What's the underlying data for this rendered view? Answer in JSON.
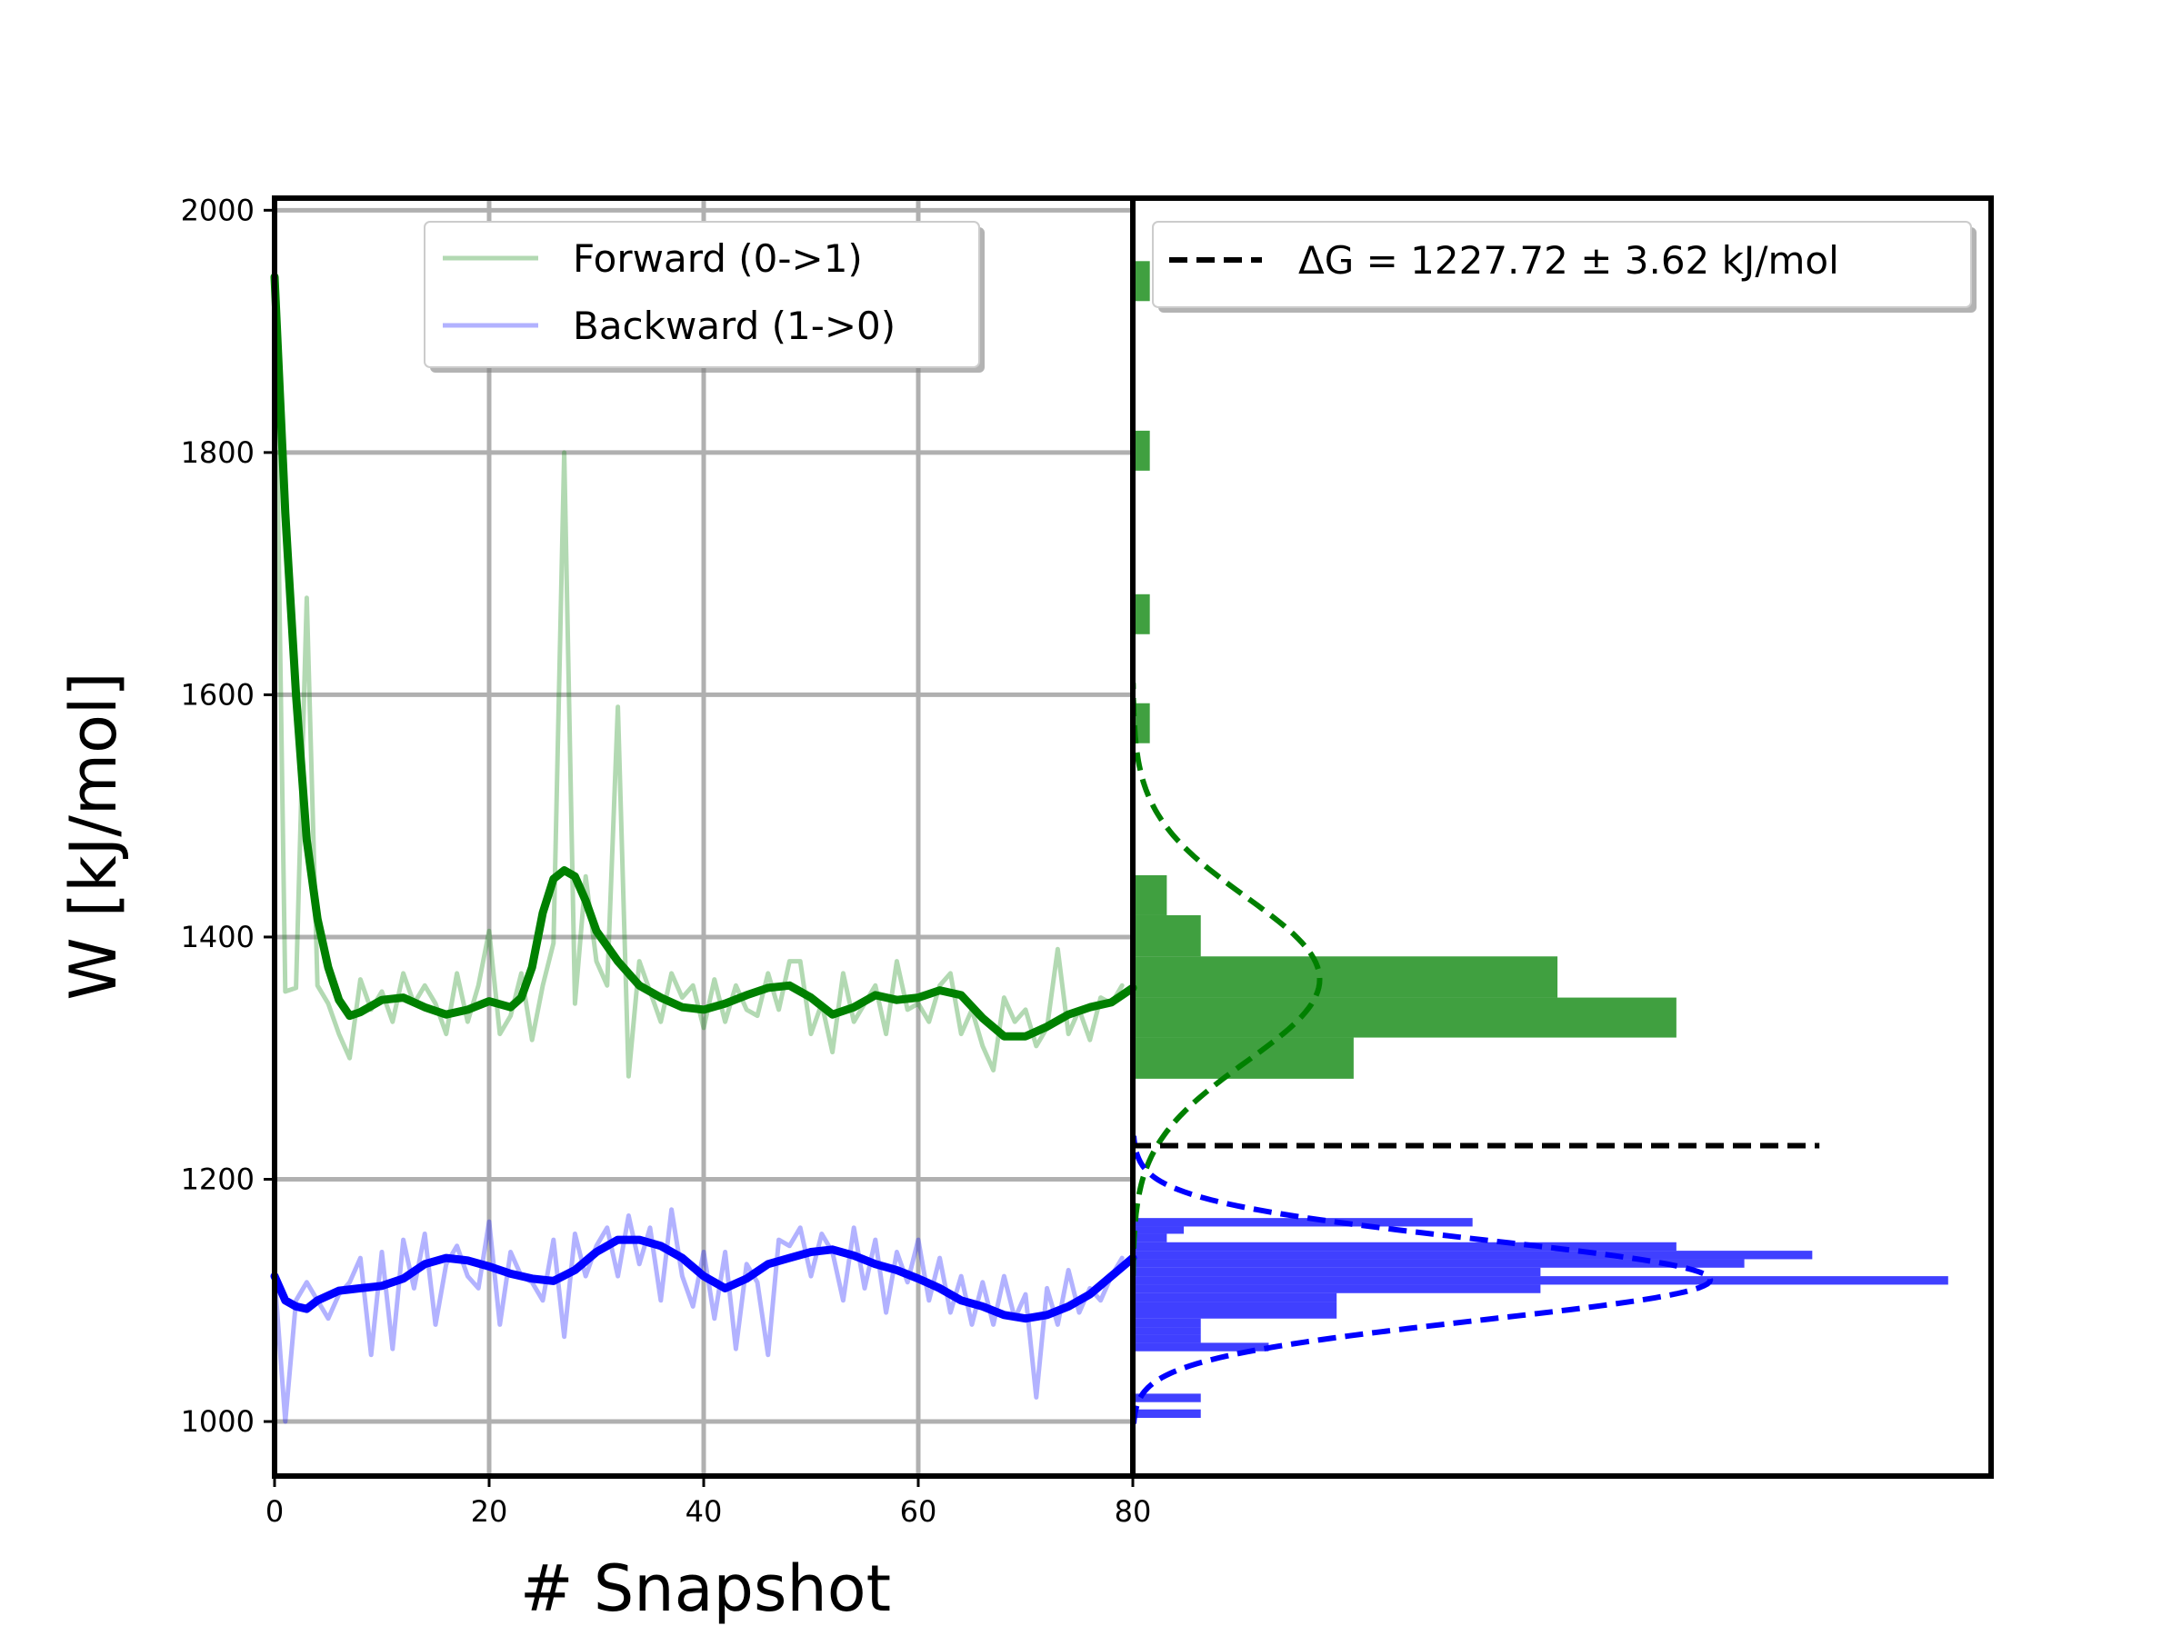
{
  "chart_data": {
    "type": "line",
    "xlabel": "# Snapshot",
    "ylabel": "W [kJ/mol]",
    "xlim": [
      0,
      80
    ],
    "ylim": [
      955,
      2010
    ],
    "x_ticks": [
      0,
      20,
      40,
      60,
      80
    ],
    "y_ticks": [
      1000,
      1200,
      1400,
      1600,
      1800,
      2000
    ],
    "grid": true,
    "legend_placement": "top-center",
    "series": [
      {
        "name": "Forward (0->1)",
        "color": "#008000",
        "alpha": 0.3,
        "x": [
          0,
          1,
          2,
          3,
          4,
          5,
          6,
          7,
          8,
          9,
          10,
          11,
          12,
          13,
          14,
          15,
          16,
          17,
          18,
          19,
          20,
          21,
          22,
          23,
          24,
          25,
          26,
          27,
          28,
          29,
          30,
          31,
          32,
          33,
          34,
          35,
          36,
          37,
          38,
          39,
          40,
          41,
          42,
          43,
          44,
          45,
          46,
          47,
          48,
          49,
          50,
          51,
          52,
          53,
          54,
          55,
          56,
          57,
          58,
          59,
          60,
          61,
          62,
          63,
          64,
          65,
          66,
          67,
          68,
          69,
          70,
          71,
          72,
          73,
          74,
          75,
          76,
          77,
          78,
          79
        ],
        "y": [
          1945,
          1355,
          1358,
          1680,
          1360,
          1345,
          1320,
          1300,
          1365,
          1340,
          1355,
          1330,
          1370,
          1345,
          1360,
          1345,
          1320,
          1370,
          1330,
          1360,
          1405,
          1320,
          1335,
          1370,
          1315,
          1360,
          1395,
          1800,
          1345,
          1450,
          1380,
          1360,
          1590,
          1285,
          1380,
          1355,
          1330,
          1370,
          1350,
          1360,
          1325,
          1365,
          1330,
          1360,
          1340,
          1335,
          1370,
          1340,
          1380,
          1380,
          1320,
          1345,
          1305,
          1370,
          1330,
          1345,
          1360,
          1320,
          1380,
          1340,
          1345,
          1330,
          1360,
          1370,
          1320,
          1340,
          1310,
          1290,
          1350,
          1330,
          1340,
          1310,
          1325,
          1390,
          1320,
          1340,
          1315,
          1350,
          1345,
          1360
        ]
      },
      {
        "name": "",
        "color": "#008000",
        "alpha": 1,
        "x": [
          0,
          1,
          2,
          3,
          4,
          5,
          6,
          7,
          8,
          10,
          12,
          14,
          16,
          18,
          20,
          22,
          23,
          24,
          25,
          26,
          27,
          28,
          29,
          30,
          32,
          34,
          36,
          38,
          40,
          42,
          44,
          46,
          48,
          50,
          52,
          54,
          56,
          58,
          60,
          62,
          64,
          66,
          68,
          70,
          72,
          74,
          76,
          78,
          80
        ],
        "y": [
          1945,
          1750,
          1600,
          1480,
          1415,
          1375,
          1348,
          1335,
          1338,
          1348,
          1350,
          1342,
          1336,
          1340,
          1347,
          1342,
          1350,
          1375,
          1420,
          1448,
          1455,
          1450,
          1430,
          1405,
          1380,
          1360,
          1350,
          1342,
          1340,
          1345,
          1352,
          1358,
          1360,
          1350,
          1336,
          1342,
          1352,
          1348,
          1350,
          1356,
          1352,
          1333,
          1318,
          1318,
          1326,
          1336,
          1342,
          1346,
          1358
        ]
      },
      {
        "name": "Backward (1->0)",
        "color": "#0000ff",
        "alpha": 0.3,
        "x": [
          0,
          1,
          2,
          3,
          4,
          5,
          6,
          7,
          8,
          9,
          10,
          11,
          12,
          13,
          14,
          15,
          16,
          17,
          18,
          19,
          20,
          21,
          22,
          23,
          24,
          25,
          26,
          27,
          28,
          29,
          30,
          31,
          32,
          33,
          34,
          35,
          36,
          37,
          38,
          39,
          40,
          41,
          42,
          43,
          44,
          45,
          46,
          47,
          48,
          49,
          50,
          51,
          52,
          53,
          54,
          55,
          56,
          57,
          58,
          59,
          60,
          61,
          62,
          63,
          64,
          65,
          66,
          67,
          68,
          69,
          70,
          71,
          72,
          73,
          74,
          75,
          76,
          77,
          78,
          79
        ],
        "y": [
          1120,
          1000,
          1100,
          1115,
          1100,
          1085,
          1105,
          1115,
          1135,
          1055,
          1140,
          1060,
          1150,
          1110,
          1155,
          1080,
          1130,
          1145,
          1120,
          1110,
          1165,
          1080,
          1140,
          1120,
          1115,
          1100,
          1150,
          1070,
          1155,
          1120,
          1145,
          1160,
          1120,
          1170,
          1130,
          1160,
          1100,
          1175,
          1120,
          1095,
          1140,
          1085,
          1140,
          1060,
          1130,
          1115,
          1055,
          1150,
          1145,
          1160,
          1120,
          1155,
          1140,
          1100,
          1160,
          1110,
          1150,
          1090,
          1140,
          1115,
          1150,
          1100,
          1135,
          1090,
          1120,
          1080,
          1115,
          1080,
          1120,
          1085,
          1105,
          1020,
          1110,
          1080,
          1125,
          1090,
          1110,
          1100,
          1120,
          1135
        ]
      },
      {
        "name": "",
        "color": "#0000ff",
        "alpha": 1,
        "x": [
          0,
          1,
          2,
          3,
          4,
          6,
          8,
          10,
          12,
          14,
          16,
          18,
          20,
          22,
          24,
          26,
          28,
          30,
          32,
          34,
          36,
          38,
          40,
          42,
          44,
          46,
          48,
          50,
          52,
          54,
          56,
          58,
          60,
          62,
          64,
          66,
          68,
          70,
          72,
          74,
          76,
          78,
          80
        ],
        "y": [
          1120,
          1100,
          1095,
          1093,
          1100,
          1108,
          1110,
          1112,
          1118,
          1130,
          1135,
          1133,
          1128,
          1122,
          1118,
          1116,
          1125,
          1140,
          1150,
          1150,
          1145,
          1135,
          1120,
          1110,
          1118,
          1130,
          1135,
          1140,
          1142,
          1137,
          1130,
          1125,
          1118,
          1110,
          1100,
          1095,
          1088,
          1085,
          1088,
          1095,
          1105,
          1120,
          1135
        ]
      }
    ],
    "histogram": {
      "orientation": "horizontal",
      "forward": {
        "color": "#008000",
        "bins": [
          {
            "y0": 1925,
            "y1": 1958,
            "count": 1
          },
          {
            "y0": 1785,
            "y1": 1818,
            "count": 1
          },
          {
            "y0": 1650,
            "y1": 1683,
            "count": 1
          },
          {
            "y0": 1560,
            "y1": 1593,
            "count": 1
          },
          {
            "y0": 1418,
            "y1": 1451,
            "count": 2
          },
          {
            "y0": 1384,
            "y1": 1418,
            "count": 4
          },
          {
            "y0": 1350,
            "y1": 1384,
            "count": 25
          },
          {
            "y0": 1317,
            "y1": 1350,
            "count": 32
          },
          {
            "y0": 1283,
            "y1": 1317,
            "count": 13
          }
        ],
        "gaussian": {
          "mean": 1365,
          "sd": 68,
          "peak": 11
        }
      },
      "backward": {
        "color": "#0000ff",
        "bins": [
          {
            "y0": 1161,
            "y1": 1168,
            "count": 20
          },
          {
            "y0": 1155,
            "y1": 1161,
            "count": 3
          },
          {
            "y0": 1148,
            "y1": 1155,
            "count": 2
          },
          {
            "y0": 1141,
            "y1": 1148,
            "count": 32
          },
          {
            "y0": 1134,
            "y1": 1141,
            "count": 40
          },
          {
            "y0": 1127,
            "y1": 1134,
            "count": 36
          },
          {
            "y0": 1120,
            "y1": 1127,
            "count": 24
          },
          {
            "y0": 1113,
            "y1": 1120,
            "count": 48
          },
          {
            "y0": 1106,
            "y1": 1113,
            "count": 24
          },
          {
            "y0": 1099,
            "y1": 1106,
            "count": 12
          },
          {
            "y0": 1085,
            "y1": 1099,
            "count": 12
          },
          {
            "y0": 1078,
            "y1": 1085,
            "count": 4
          },
          {
            "y0": 1072,
            "y1": 1078,
            "count": 4
          },
          {
            "y0": 1065,
            "y1": 1072,
            "count": 4
          },
          {
            "y0": 1058,
            "y1": 1065,
            "count": 8
          },
          {
            "y0": 1016,
            "y1": 1023,
            "count": 4
          },
          {
            "y0": 1003,
            "y1": 1010,
            "count": 4
          }
        ],
        "gaussian": {
          "mean": 1117,
          "sd": 33,
          "peak": 34
        }
      },
      "max_count": 48
    },
    "delta_g": {
      "label": "ΔG = 1227.72 ± 3.62 kJ/mol",
      "value": 1227.72,
      "error": 3.62,
      "color": "#000000",
      "line_fraction": 0.8
    }
  }
}
